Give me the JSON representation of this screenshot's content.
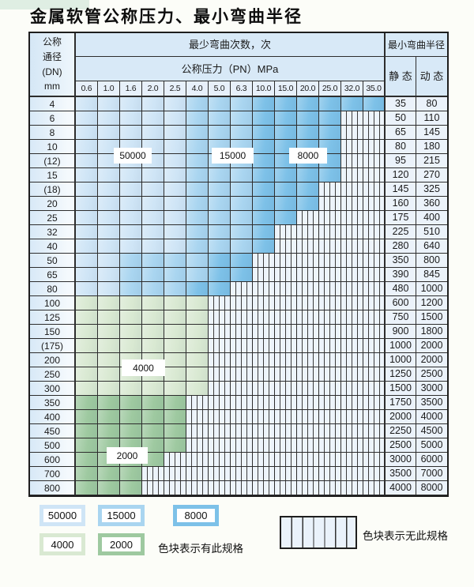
{
  "title": "金属软管公称压力、最小弯曲半径",
  "table": {
    "header": {
      "dn_lines": [
        "公称",
        "通径",
        "(DN)",
        "mm"
      ],
      "cycles_title": "最少弯曲次数，次",
      "pressure_title": "公称压力（PN）MPa",
      "pressures": [
        "0.6",
        "1.0",
        "1.6",
        "2.0",
        "2.5",
        "4.0",
        "5.0",
        "6.3",
        "10.0",
        "15.0",
        "20.0",
        "25.0",
        "32.0",
        "35.0"
      ],
      "radius_title": "最小弯曲半径",
      "static_label": "静 态",
      "dynamic_label": "动 态"
    },
    "rows": [
      {
        "dn": "4",
        "spec": "11111222333333",
        "static": "35",
        "dynamic": "80"
      },
      {
        "dn": "6",
        "spec": "111112223333xx",
        "static": "50",
        "dynamic": "110"
      },
      {
        "dn": "8",
        "spec": "111112223333xx",
        "static": "65",
        "dynamic": "145"
      },
      {
        "dn": "10",
        "spec": "111112223333xx",
        "static": "80",
        "dynamic": "180"
      },
      {
        "dn": "(12)",
        "spec": "111112223333xx",
        "static": "95",
        "dynamic": "215"
      },
      {
        "dn": "15",
        "spec": "111112223333xx",
        "static": "120",
        "dynamic": "270"
      },
      {
        "dn": "(18)",
        "spec": "11111222333xxx",
        "static": "145",
        "dynamic": "325"
      },
      {
        "dn": "20",
        "spec": "11111222333xxx",
        "static": "160",
        "dynamic": "360"
      },
      {
        "dn": "25",
        "spec": "1111122233xxxx",
        "static": "175",
        "dynamic": "400"
      },
      {
        "dn": "32",
        "spec": "111112223xxxxx",
        "static": "225",
        "dynamic": "510"
      },
      {
        "dn": "40",
        "spec": "111112223xxxxx",
        "static": "280",
        "dynamic": "640"
      },
      {
        "dn": "50",
        "spec": "11222233xxxxxx",
        "static": "350",
        "dynamic": "800"
      },
      {
        "dn": "65",
        "spec": "11222233xxxxxx",
        "static": "390",
        "dynamic": "845"
      },
      {
        "dn": "80",
        "spec": "1122233xxxxxxx",
        "static": "480",
        "dynamic": "1000"
      },
      {
        "dn": "100",
        "spec": "444444xxxxxxxx",
        "static": "600",
        "dynamic": "1200"
      },
      {
        "dn": "125",
        "spec": "444444xxxxxxxx",
        "static": "750",
        "dynamic": "1500"
      },
      {
        "dn": "150",
        "spec": "444444xxxxxxxx",
        "static": "900",
        "dynamic": "1800"
      },
      {
        "dn": "(175)",
        "spec": "444444xxxxxxxx",
        "static": "1000",
        "dynamic": "2000"
      },
      {
        "dn": "200",
        "spec": "444444xxxxxxxx",
        "static": "1000",
        "dynamic": "2000"
      },
      {
        "dn": "250",
        "spec": "444444xxxxxxxx",
        "static": "1250",
        "dynamic": "2500"
      },
      {
        "dn": "300",
        "spec": "444444xxxxxxxx",
        "static": "1500",
        "dynamic": "3000"
      },
      {
        "dn": "350",
        "spec": "55555xxxxxxxxx",
        "static": "1750",
        "dynamic": "3500"
      },
      {
        "dn": "400",
        "spec": "55555xxxxxxxxx",
        "static": "2000",
        "dynamic": "4000"
      },
      {
        "dn": "450",
        "spec": "55555xxxxxxxxx",
        "static": "2250",
        "dynamic": "4500"
      },
      {
        "dn": "500",
        "spec": "55555xxxxxxxxx",
        "static": "2500",
        "dynamic": "5000"
      },
      {
        "dn": "600",
        "spec": "5555xxxxxxxxxx",
        "static": "3000",
        "dynamic": "6000"
      },
      {
        "dn": "700",
        "spec": "555xxxxxxxxxxx",
        "static": "3500",
        "dynamic": "7000"
      },
      {
        "dn": "800",
        "spec": "555xxxxxxxxxxx",
        "static": "4000",
        "dynamic": "8000"
      }
    ],
    "overlay_labels": [
      "50000",
      "15000",
      "8000",
      "4000",
      "2000"
    ]
  },
  "spec_colors": {
    "50000": "#cfe5f6",
    "15000": "#a9d5f0",
    "8000": "#7dc1e8",
    "4000": "#d9e9d2",
    "2000": "#9ec9a0"
  },
  "legend": {
    "present_values": [
      "50000",
      "15000",
      "8000",
      "4000",
      "2000"
    ],
    "present_note": "色块表示有此规格",
    "absent_note": "色块表示无此规格"
  }
}
